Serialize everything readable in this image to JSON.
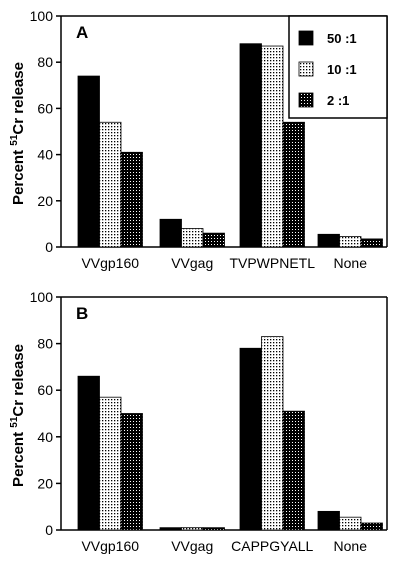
{
  "chart_data": [
    {
      "type": "bar",
      "panel_label": "A",
      "ylabel_prefix": "Percent ",
      "ylabel_sup": "51",
      "ylabel_suffix": "Cr release",
      "ylim": [
        0,
        100
      ],
      "yticks": [
        "0",
        "20",
        "40",
        "60",
        "80",
        "100"
      ],
      "categories": [
        "VVgp160",
        "VVgag",
        "TVPWPNETL",
        "None"
      ],
      "series": [
        {
          "name": "50 :1",
          "values": [
            74,
            12,
            88,
            5.5
          ],
          "fill": "solid"
        },
        {
          "name": "10 :1",
          "values": [
            54,
            8,
            87,
            4.5
          ],
          "fill": "dotted-light"
        },
        {
          "name": "2 :1",
          "values": [
            41,
            6,
            54,
            3.5
          ],
          "fill": "dotted-dark"
        }
      ],
      "legend": {
        "placement": "top-right"
      }
    },
    {
      "type": "bar",
      "panel_label": "B",
      "ylabel_prefix": "Percent ",
      "ylabel_sup": "51",
      "ylabel_suffix": "Cr release",
      "ylim": [
        0,
        100
      ],
      "yticks": [
        "0",
        "20",
        "40",
        "60",
        "80",
        "100"
      ],
      "categories": [
        "VVgp160",
        "VVgag",
        "CAPPGYALL",
        "None"
      ],
      "series": [
        {
          "name": "50 :1",
          "values": [
            66,
            1,
            78,
            8
          ],
          "fill": "solid"
        },
        {
          "name": "10 :1",
          "values": [
            57,
            1,
            83,
            5.5
          ],
          "fill": "dotted-light"
        },
        {
          "name": "2 :1",
          "values": [
            50,
            1,
            51,
            3
          ],
          "fill": "dotted-dark"
        }
      ]
    }
  ]
}
